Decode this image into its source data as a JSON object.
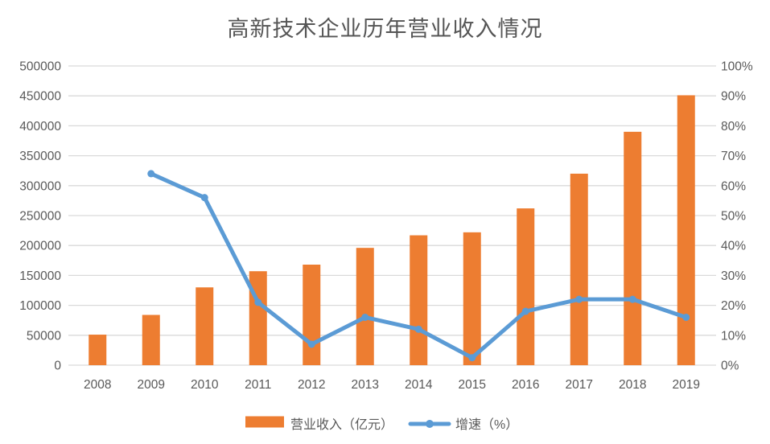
{
  "page": {
    "background": "#ffffff"
  },
  "chart_data": {
    "type": "bar+line",
    "title": "高新技术企业历年营业收入情况",
    "categories": [
      "2008",
      "2009",
      "2010",
      "2011",
      "2012",
      "2013",
      "2014",
      "2015",
      "2016",
      "2017",
      "2018",
      "2019"
    ],
    "series": [
      {
        "name": "营业收入（亿元）",
        "type": "bar",
        "axis": "left",
        "color": "#ED7D31",
        "values": [
          51000,
          84000,
          130000,
          157000,
          168000,
          196000,
          217000,
          222000,
          262000,
          320000,
          390000,
          451000
        ]
      },
      {
        "name": "增速（%）",
        "type": "line",
        "axis": "right",
        "color": "#5B9BD5",
        "values": [
          null,
          64,
          56,
          21,
          7,
          16,
          12,
          2.5,
          18,
          22,
          22,
          16
        ]
      }
    ],
    "left_axis": {
      "min": 0,
      "max": 500000,
      "step": 50000,
      "tick_labels": [
        "0",
        "50000",
        "100000",
        "150000",
        "200000",
        "250000",
        "300000",
        "350000",
        "400000",
        "450000",
        "500000"
      ]
    },
    "right_axis": {
      "min": 0,
      "max": 100,
      "step": 10,
      "suffix": "%",
      "tick_labels": [
        "0%",
        "10%",
        "20%",
        "30%",
        "40%",
        "50%",
        "60%",
        "70%",
        "80%",
        "90%",
        "100%"
      ]
    },
    "grid": true,
    "legend_position": "bottom",
    "colors": {
      "bar": "#ED7D31",
      "line": "#5B9BD5",
      "gridline": "#D9D9D9",
      "tick_text": "#595959",
      "title_text": "#555555"
    }
  }
}
